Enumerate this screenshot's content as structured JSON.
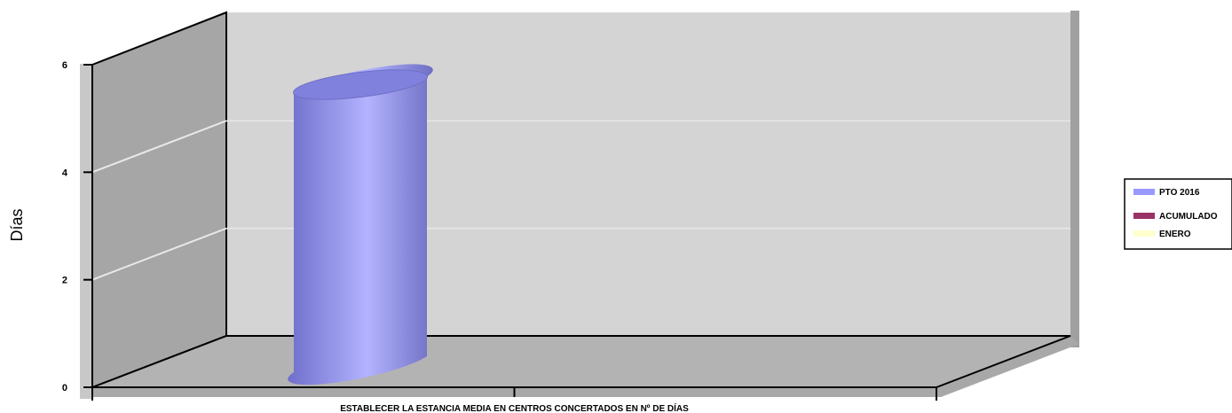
{
  "chart_data": {
    "type": "bar",
    "style": "3d-cylinder",
    "categories": [
      "ESTABLECER LA ESTANCIA MEDIA EN CENTROS CONCERTADOS EN Nº DE DÍAS"
    ],
    "series": [
      {
        "name": "PTO 2016",
        "values": [
          5.2
        ],
        "color": "#9999ff"
      },
      {
        "name": "ACUMULADO",
        "values": [
          null
        ],
        "color": "#993366"
      },
      {
        "name": "ENERO",
        "values": [
          null
        ],
        "color": "#ffffcc"
      }
    ],
    "ylabel": "Días",
    "ylim": [
      0,
      6
    ],
    "yticks": [
      "0",
      "2",
      "4",
      "6"
    ],
    "grid": true,
    "legend": "right"
  }
}
